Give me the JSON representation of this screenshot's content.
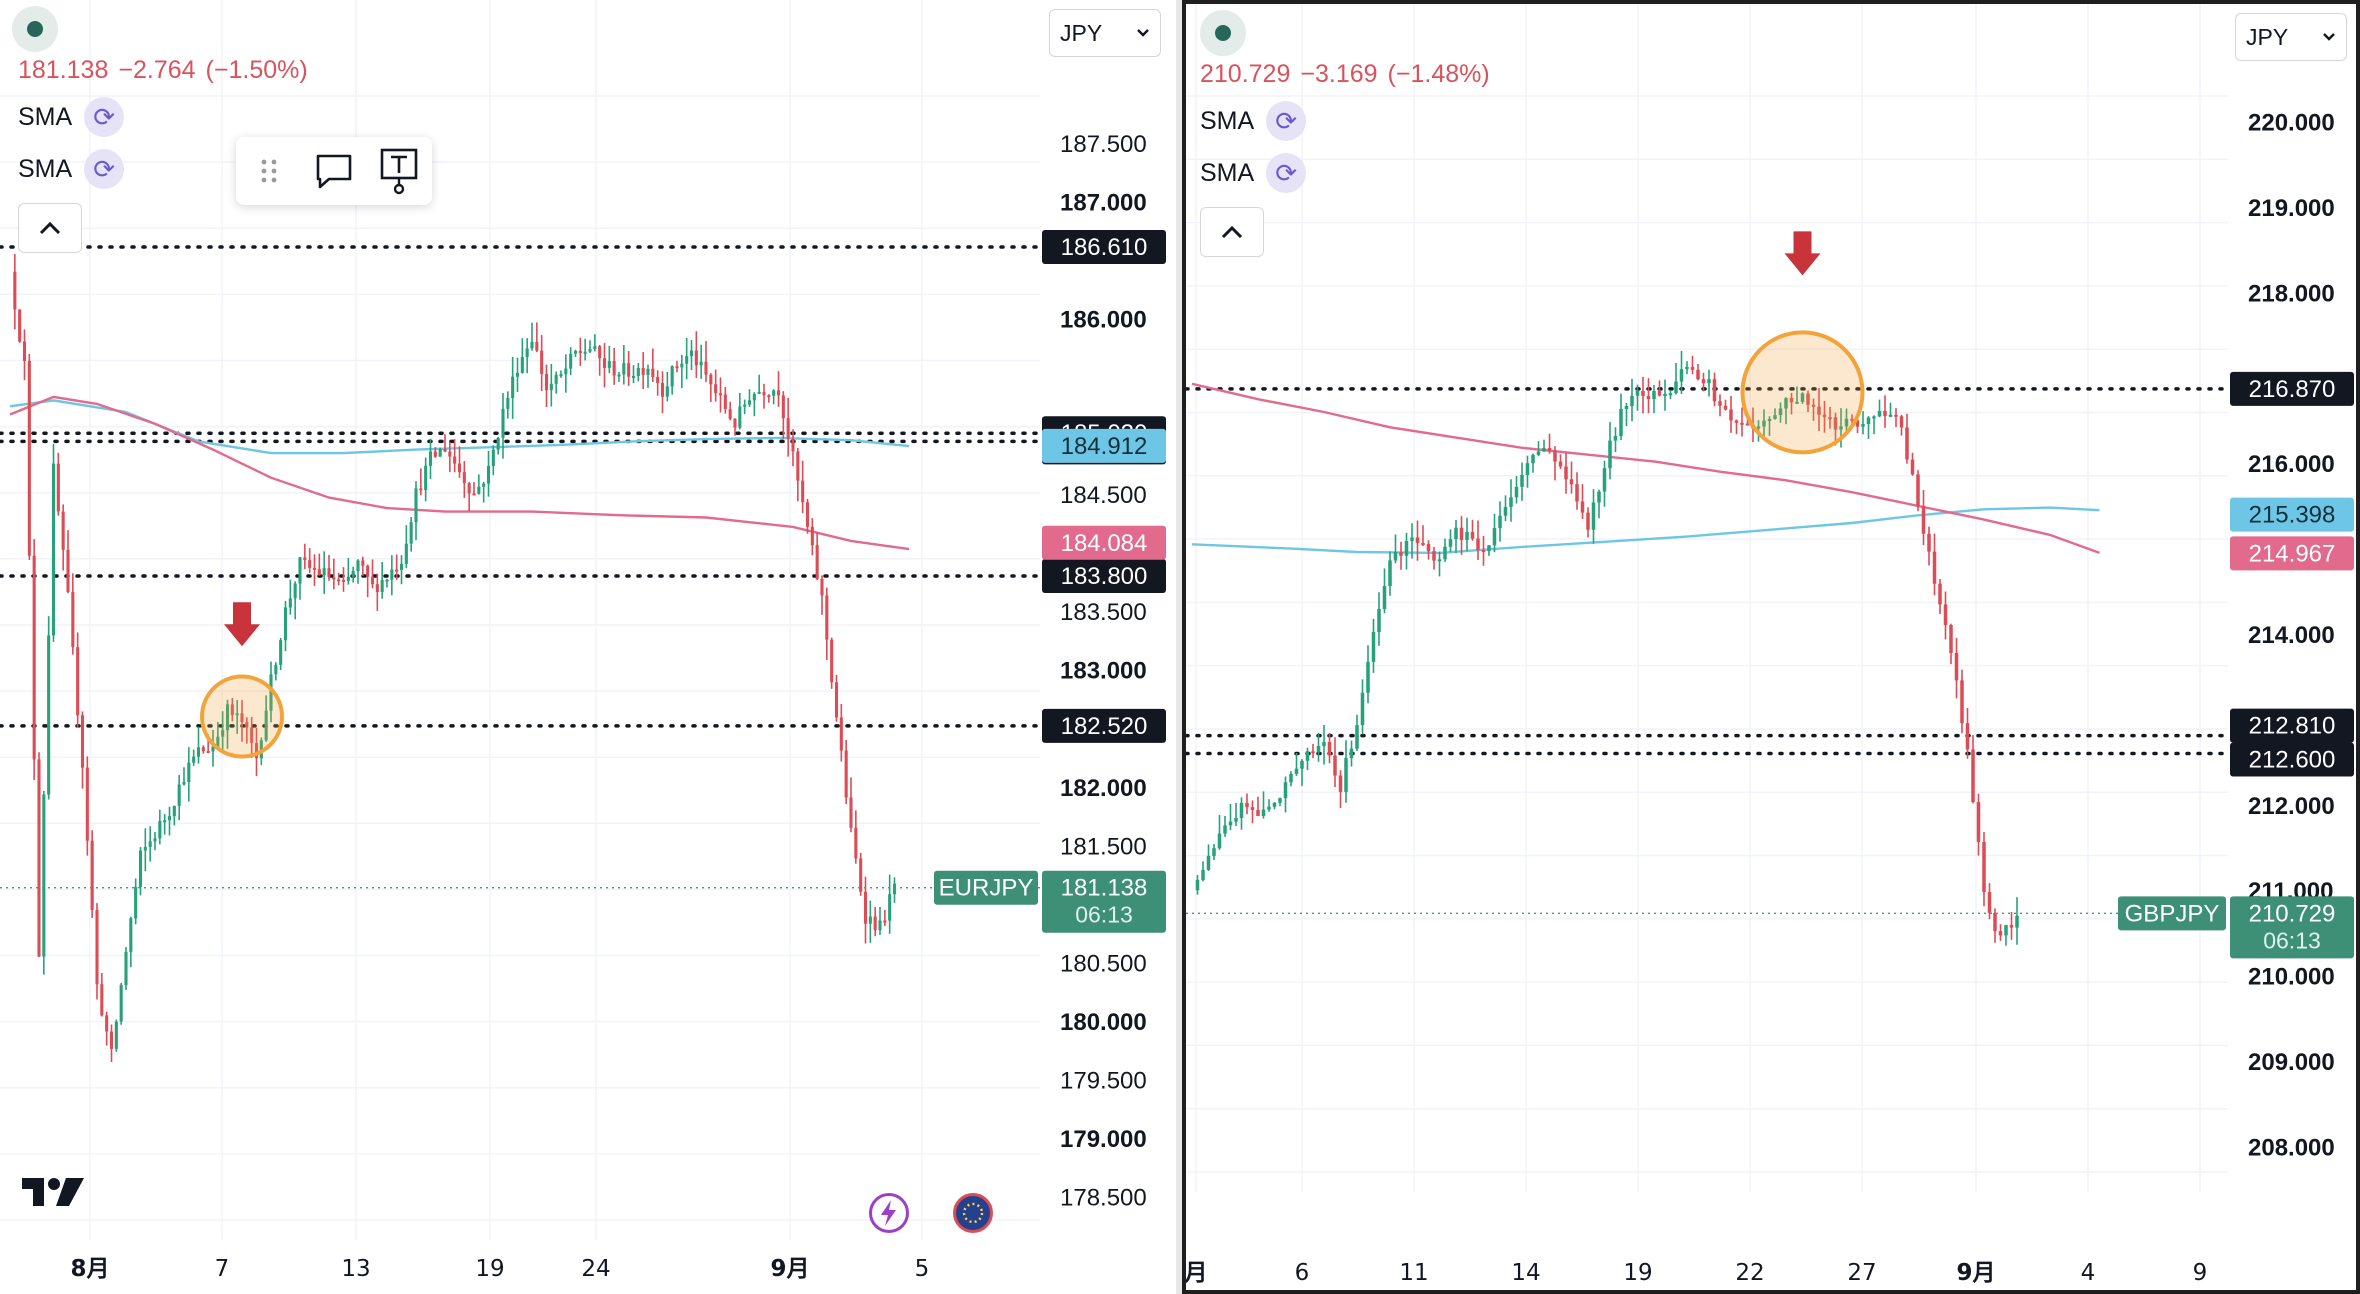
{
  "colors": {
    "up": "#26a17a",
    "down": "#dd4b55",
    "sma_blue": "#6ec6e6",
    "sma_pink": "#e26a8c",
    "label_dark": "#131722",
    "highlight": "#f2a33a"
  },
  "left": {
    "symbol": "EURJPY",
    "quote": {
      "price": "181.138",
      "change": "−2.764",
      "pct": "(−1.50%)"
    },
    "indicators": [
      {
        "label": "SMA",
        "icon": "refresh-icon"
      },
      {
        "label": "SMA",
        "icon": "refresh-icon"
      }
    ],
    "currency": "JPY",
    "toolbar": [
      "drag-handle-icon",
      "comment-icon",
      "text-tool-icon"
    ],
    "countdown": "06:13",
    "footer_icons": [
      "lightning-icon",
      "eu-flag-icon"
    ]
  },
  "right": {
    "symbol": "GBPJPY",
    "quote": {
      "price": "210.729",
      "change": "−3.169",
      "pct": "(−1.48%)"
    },
    "indicators": [
      {
        "label": "SMA",
        "icon": "refresh-icon"
      },
      {
        "label": "SMA",
        "icon": "refresh-icon"
      }
    ],
    "currency": "JPY",
    "countdown": "06:13"
  },
  "chart_data": [
    {
      "type": "candlestick",
      "symbol": "EURJPY",
      "y_ticks": [
        "187.500",
        "187.000",
        "186.000",
        "184.500",
        "183.500",
        "183.000",
        "182.000",
        "181.500",
        "180.500",
        "180.000",
        "179.500",
        "179.000",
        "178.500"
      ],
      "y_range": [
        178.3,
        187.9
      ],
      "x_ticks": [
        "8月",
        "7",
        "13",
        "19",
        "24",
        "9月",
        "5"
      ],
      "horizontal_levels": [
        {
          "value": 186.61,
          "label": "186.610"
        },
        {
          "value": 185.02,
          "label": "185.020"
        },
        {
          "value": 184.95,
          "label": "184.950"
        },
        {
          "value": 183.8,
          "label": "183.800"
        },
        {
          "value": 182.52,
          "label": "182.520"
        }
      ],
      "sma_fast": {
        "last": "184.912",
        "path": [
          [
            0,
            185.25
          ],
          [
            3,
            185.3
          ],
          [
            8,
            185.2
          ],
          [
            13,
            184.95
          ],
          [
            18,
            184.85
          ],
          [
            23,
            184.85
          ],
          [
            28,
            184.88
          ],
          [
            33,
            184.9
          ],
          [
            38,
            184.92
          ],
          [
            43,
            184.95
          ],
          [
            48,
            184.97
          ],
          [
            53,
            184.98
          ],
          [
            58,
            184.96
          ],
          [
            62,
            184.91
          ]
        ]
      },
      "sma_slow": {
        "last": "184.084",
        "path": [
          [
            0,
            185.18
          ],
          [
            3,
            185.33
          ],
          [
            6,
            185.27
          ],
          [
            10,
            185.1
          ],
          [
            14,
            184.88
          ],
          [
            18,
            184.64
          ],
          [
            22,
            184.47
          ],
          [
            26,
            184.38
          ],
          [
            30,
            184.35
          ],
          [
            36,
            184.35
          ],
          [
            42,
            184.32
          ],
          [
            48,
            184.3
          ],
          [
            54,
            184.22
          ],
          [
            58,
            184.1
          ],
          [
            62,
            184.03
          ]
        ]
      },
      "candle_path": [
        [
          0,
          186.4
        ],
        [
          1,
          185.6
        ],
        [
          2,
          180.6
        ],
        [
          3,
          184.7
        ],
        [
          4,
          183.6
        ],
        [
          5,
          182.2
        ],
        [
          6,
          180.3
        ],
        [
          7,
          179.7
        ],
        [
          8,
          180.6
        ],
        [
          9,
          181.4
        ],
        [
          10,
          181.6
        ],
        [
          11,
          181.8
        ],
        [
          12,
          182.1
        ],
        [
          13,
          182.3
        ],
        [
          14,
          182.35
        ],
        [
          15,
          182.65
        ],
        [
          16,
          182.55
        ],
        [
          17,
          182.25
        ],
        [
          18,
          182.9
        ],
        [
          19,
          183.5
        ],
        [
          20,
          183.9
        ],
        [
          21,
          183.85
        ],
        [
          22,
          183.8
        ],
        [
          23,
          183.7
        ],
        [
          24,
          183.9
        ],
        [
          25,
          183.7
        ],
        [
          26,
          183.8
        ],
        [
          27,
          183.95
        ],
        [
          28,
          184.5
        ],
        [
          29,
          184.8
        ],
        [
          30,
          184.9
        ],
        [
          31,
          184.7
        ],
        [
          32,
          184.5
        ],
        [
          33,
          184.7
        ],
        [
          34,
          185.2
        ],
        [
          35,
          185.6
        ],
        [
          36,
          185.85
        ],
        [
          37,
          185.4
        ],
        [
          38,
          185.5
        ],
        [
          39,
          185.7
        ],
        [
          40,
          185.75
        ],
        [
          41,
          185.6
        ],
        [
          42,
          185.55
        ],
        [
          43,
          185.55
        ],
        [
          44,
          185.6
        ],
        [
          45,
          185.4
        ],
        [
          46,
          185.6
        ],
        [
          47,
          185.7
        ],
        [
          48,
          185.5
        ],
        [
          49,
          185.3
        ],
        [
          50,
          185.1
        ],
        [
          51,
          185.35
        ],
        [
          52,
          185.4
        ],
        [
          53,
          185.4
        ],
        [
          54,
          184.8
        ],
        [
          55,
          184.2
        ],
        [
          56,
          183.6
        ],
        [
          57,
          182.6
        ],
        [
          58,
          181.6
        ],
        [
          59,
          180.9
        ],
        [
          60,
          180.8
        ],
        [
          61,
          181.14
        ]
      ],
      "markers": [
        {
          "type": "arrow-down",
          "x": 16,
          "value": 183.2
        },
        {
          "type": "circle",
          "x": 16,
          "value": 182.6
        }
      ],
      "last_price": "181.138"
    },
    {
      "type": "candlestick",
      "symbol": "GBPJPY",
      "y_ticks": [
        "220.000",
        "219.000",
        "218.000",
        "216.000",
        "214.000",
        "212.000",
        "211.000",
        "210.000",
        "209.000",
        "208.000"
      ],
      "y_range": [
        207.7,
        220.3
      ],
      "x_ticks": [
        "月",
        "6",
        "11",
        "14",
        "19",
        "22",
        "27",
        "9月",
        "4",
        "9"
      ],
      "horizontal_levels": [
        {
          "value": 216.87,
          "label": "216.870"
        },
        {
          "value": 212.81,
          "label": "212.810"
        },
        {
          "value": 212.6,
          "label": "212.600"
        }
      ],
      "sma_fast": {
        "last": "215.398",
        "path": [
          [
            0,
            215.05
          ],
          [
            6,
            215.0
          ],
          [
            10,
            214.96
          ],
          [
            15,
            214.95
          ],
          [
            20,
            215.02
          ],
          [
            25,
            215.08
          ],
          [
            30,
            215.14
          ],
          [
            35,
            215.22
          ],
          [
            40,
            215.3
          ],
          [
            44,
            215.39
          ],
          [
            48,
            215.46
          ],
          [
            52,
            215.48
          ],
          [
            55,
            215.45
          ]
        ]
      },
      "sma_slow": {
        "last": "214.967",
        "path": [
          [
            0,
            216.93
          ],
          [
            4,
            216.75
          ],
          [
            8,
            216.6
          ],
          [
            12,
            216.42
          ],
          [
            16,
            216.3
          ],
          [
            20,
            216.18
          ],
          [
            24,
            216.1
          ],
          [
            28,
            216.02
          ],
          [
            32,
            215.9
          ],
          [
            36,
            215.8
          ],
          [
            40,
            215.66
          ],
          [
            44,
            215.5
          ],
          [
            48,
            215.34
          ],
          [
            52,
            215.16
          ],
          [
            55,
            214.95
          ]
        ]
      },
      "candle_path": [
        [
          0,
          211.0
        ],
        [
          1,
          211.4
        ],
        [
          2,
          211.7
        ],
        [
          3,
          212.0
        ],
        [
          4,
          211.9
        ],
        [
          5,
          212.0
        ],
        [
          6,
          212.3
        ],
        [
          7,
          212.6
        ],
        [
          8,
          212.8
        ],
        [
          9,
          212.2
        ],
        [
          10,
          213.0
        ],
        [
          11,
          214.0
        ],
        [
          12,
          214.8
        ],
        [
          13,
          215.1
        ],
        [
          14,
          215.0
        ],
        [
          15,
          214.9
        ],
        [
          16,
          215.2
        ],
        [
          17,
          215.1
        ],
        [
          18,
          215.0
        ],
        [
          19,
          215.5
        ],
        [
          20,
          215.9
        ],
        [
          21,
          216.2
        ],
        [
          22,
          216.0
        ],
        [
          23,
          215.7
        ],
        [
          24,
          215.2
        ],
        [
          25,
          216.0
        ],
        [
          26,
          216.6
        ],
        [
          27,
          216.9
        ],
        [
          28,
          216.8
        ],
        [
          29,
          216.9
        ],
        [
          30,
          217.2
        ],
        [
          31,
          217.0
        ],
        [
          32,
          216.7
        ],
        [
          33,
          216.5
        ],
        [
          34,
          216.4
        ],
        [
          35,
          216.6
        ],
        [
          36,
          216.7
        ],
        [
          37,
          216.8
        ],
        [
          38,
          216.6
        ],
        [
          39,
          216.4
        ],
        [
          40,
          216.5
        ],
        [
          41,
          216.5
        ],
        [
          42,
          216.6
        ],
        [
          43,
          216.4
        ],
        [
          44,
          215.5
        ],
        [
          45,
          214.6
        ],
        [
          46,
          213.8
        ],
        [
          47,
          212.6
        ],
        [
          48,
          211.0
        ],
        [
          49,
          210.4
        ],
        [
          50,
          210.73
        ]
      ],
      "markers": [
        {
          "type": "arrow-down",
          "x": 37,
          "value": 218.2
        },
        {
          "type": "circle",
          "x": 37,
          "value": 216.83
        }
      ],
      "last_price": "210.729"
    }
  ]
}
